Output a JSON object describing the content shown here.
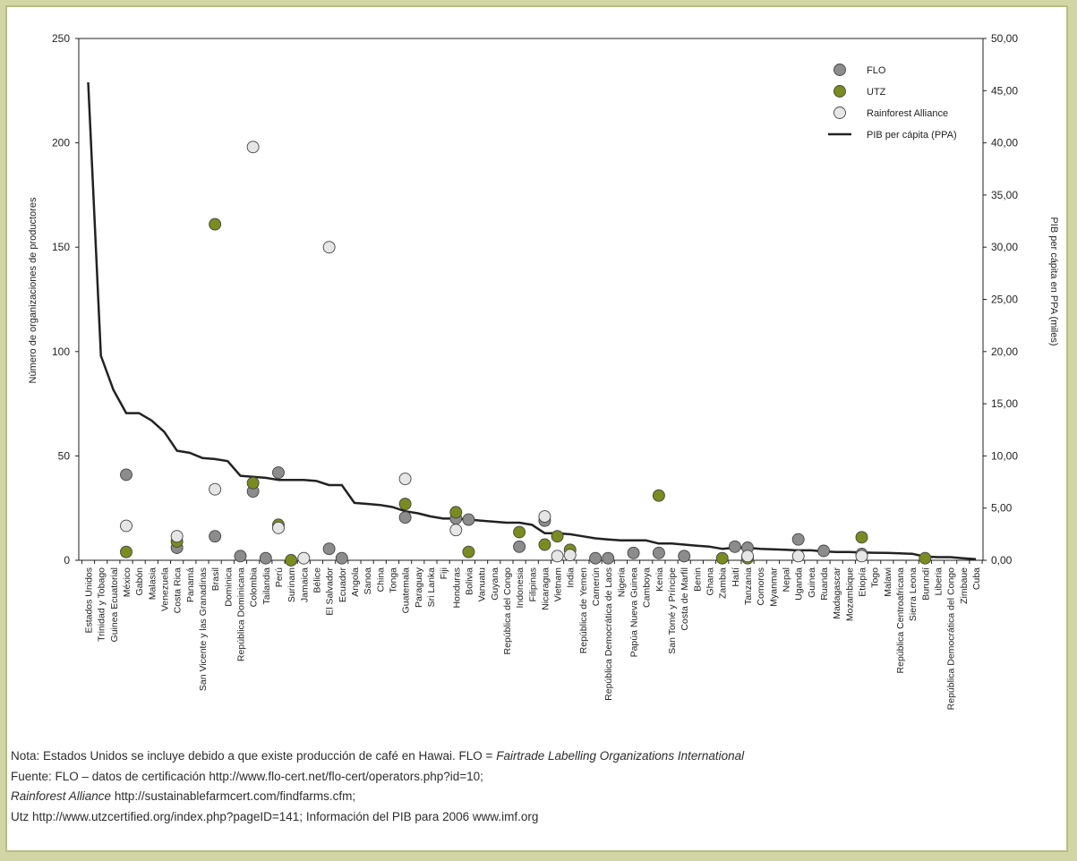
{
  "chart_data": {
    "type": "scatter",
    "ylabel": "Número de organizaciones de productores",
    "y2label": "PIB per cápita en PPA (miles)",
    "ylim": [
      0,
      250
    ],
    "y2lim": [
      0,
      50
    ],
    "yticks": [
      "0",
      "50",
      "100",
      "150",
      "200",
      "250"
    ],
    "y2ticks": [
      "0,00",
      "5,00",
      "10,00",
      "15,00",
      "20,00",
      "25,00",
      "30,00",
      "35,00",
      "40,00",
      "45,00",
      "50,00"
    ],
    "legend_position": "top-right",
    "categories": [
      "Estados Unidos",
      "Trinidad y Tobago",
      "Guinea Ecuatorial",
      "México",
      "Gabón",
      "Malasia",
      "Venezuela",
      "Costa Rica",
      "Panamá",
      "San Vicente y las Granadinas",
      "Brasil",
      "Dominica",
      "República Dominicana",
      "Colombia",
      "Tailandia",
      "Perú",
      "Surinam",
      "Jamaica",
      "Bélice",
      "El Salvador",
      "Ecuador",
      "Angola",
      "Sanoa",
      "China",
      "Tonga",
      "Guatemala",
      "Paraguay",
      "Sri Lanka",
      "Fiji",
      "Honduras",
      "Bolivia",
      "Vanuatu",
      "Guyana",
      "República del Congo",
      "Indonesia",
      "Filipinas",
      "Nicaragua",
      "Vietnam",
      "India",
      "República de Yemen",
      "Camerún",
      "República Democrática de Laos",
      "Nigeria",
      "Papúa Nueva Guinea",
      "Camboya",
      "Kenia",
      "San Tomé y Príncipe",
      "Costa de Marfil",
      "Benin",
      "Ghana",
      "Zambia",
      "Haití",
      "Tanzania",
      "Comoros",
      "Myanmar",
      "Nepal",
      "Uganda",
      "Guinea",
      "Ruanda",
      "Madagascar",
      "Mozambique",
      "Etiopía",
      "Togo",
      "Malawi",
      "República Centroafricana",
      "Sierra Leona",
      "Burundí",
      "Liberia",
      "República Democrática del Congo",
      "Zimbaue",
      "Cuba"
    ],
    "series": [
      {
        "name": "FLO",
        "color": "#8c8c8c",
        "type": "scatter",
        "values": [
          null,
          null,
          null,
          41,
          null,
          null,
          null,
          6,
          null,
          null,
          11.5,
          null,
          2,
          33,
          1,
          42,
          null,
          null,
          null,
          5.5,
          1,
          null,
          null,
          null,
          null,
          20.5,
          null,
          null,
          null,
          20,
          19.5,
          null,
          null,
          null,
          6.5,
          null,
          19,
          null,
          null,
          null,
          1,
          1,
          null,
          3.5,
          null,
          3.5,
          null,
          2,
          null,
          null,
          null,
          6.5,
          6,
          null,
          null,
          null,
          10,
          null,
          4.5,
          null,
          null,
          3,
          null,
          null,
          null,
          null,
          null,
          null,
          null,
          null,
          null
        ]
      },
      {
        "name": "UTZ",
        "color": "#7b8c1e",
        "type": "scatter",
        "values": [
          null,
          null,
          null,
          4,
          null,
          null,
          null,
          9,
          null,
          null,
          161,
          null,
          null,
          37,
          null,
          17,
          0,
          null,
          null,
          null,
          null,
          null,
          null,
          null,
          null,
          27,
          null,
          null,
          null,
          23,
          4,
          null,
          null,
          null,
          13.5,
          null,
          7.5,
          11.5,
          5,
          null,
          null,
          null,
          null,
          null,
          null,
          31,
          null,
          null,
          null,
          null,
          1,
          null,
          1,
          null,
          null,
          null,
          null,
          null,
          null,
          null,
          null,
          11,
          null,
          null,
          null,
          null,
          1,
          null,
          null,
          null,
          null
        ]
      },
      {
        "name": "Rainforest Alliance",
        "color": "#e6e6e6",
        "type": "scatter",
        "values": [
          null,
          null,
          null,
          16.5,
          null,
          null,
          null,
          11.5,
          null,
          null,
          34,
          null,
          null,
          198,
          null,
          15.5,
          null,
          1,
          null,
          150,
          null,
          null,
          null,
          null,
          null,
          39,
          null,
          null,
          null,
          14.5,
          null,
          null,
          null,
          null,
          null,
          null,
          21,
          2,
          2.5,
          null,
          null,
          null,
          null,
          null,
          null,
          null,
          null,
          null,
          null,
          null,
          null,
          null,
          2,
          null,
          null,
          null,
          2,
          null,
          null,
          null,
          null,
          2,
          null,
          null,
          null,
          null,
          null,
          null,
          null,
          null,
          null
        ]
      },
      {
        "name": "PIB per cápita (PPA)",
        "color": "#222222",
        "type": "line",
        "axis": "right",
        "values": [
          45.8,
          19.6,
          16.3,
          14.1,
          14.1,
          13.4,
          12.3,
          10.5,
          10.3,
          9.8,
          9.7,
          9.5,
          8.1,
          8,
          7.9,
          7.7,
          7.7,
          7.7,
          7.6,
          7.2,
          7.2,
          5.5,
          5.4,
          5.3,
          5.1,
          4.7,
          4.5,
          4.2,
          4,
          4,
          3.9,
          3.8,
          3.7,
          3.6,
          3.6,
          3.4,
          2.6,
          2.6,
          2.5,
          2.3,
          2.1,
          2,
          1.9,
          1.9,
          1.9,
          1.6,
          1.6,
          1.5,
          1.4,
          1.3,
          1.1,
          1.2,
          1.2,
          1.1,
          1.05,
          1,
          0.95,
          0.95,
          0.85,
          0.8,
          0.8,
          0.75,
          0.72,
          0.7,
          0.66,
          0.62,
          0.35,
          0.3,
          0.3,
          0.2,
          0.1
        ]
      }
    ]
  },
  "notes": {
    "line1_a": "Nota: Estados Unidos se incluye debido a que existe producción de café en Hawai. FLO = ",
    "line1_b": "Fairtrade Labelling Organizations International",
    "line2": "Fuente: FLO – datos de certificación http://www.flo-cert.net/flo-cert/operators.php?id=10;",
    "line3_a": "Rainforest Alliance",
    "line3_b": " http://sustainablefarmcert.com/findfarms.cfm;",
    "line4": "Utz http://www.utzcertified.org/index.php?pageID=141; Información del PIB para 2006 www.imf.org"
  }
}
